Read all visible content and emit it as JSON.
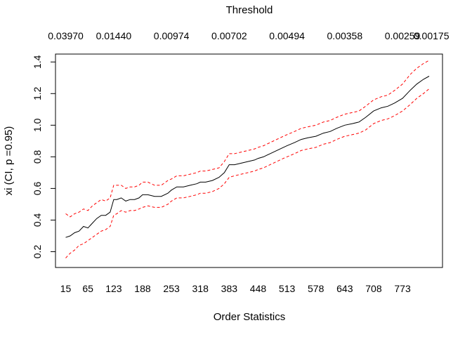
{
  "chart_data": {
    "type": "line",
    "title": "",
    "xlabel": "Order Statistics",
    "ylabel": "xi (CI, p =0.95)",
    "top_axis_label": "Threshold",
    "x_ticks": [
      15,
      65,
      123,
      188,
      253,
      318,
      383,
      448,
      513,
      578,
      643,
      708,
      773
    ],
    "x_tick_labels": [
      "15",
      "65",
      "123",
      "188",
      "253",
      "318",
      "383",
      "448",
      "513",
      "578",
      "643",
      "708",
      "773"
    ],
    "top_ticks": [
      15,
      123,
      253,
      383,
      513,
      643,
      773,
      838
    ],
    "top_tick_labels": [
      "0.03970",
      "0.01440",
      "0.00974",
      "0.00702",
      "0.00494",
      "0.00358",
      "0.00259",
      "0.00175"
    ],
    "y_ticks": [
      0.2,
      0.4,
      0.6,
      0.8,
      1.0,
      1.2,
      1.4
    ],
    "y_tick_labels": [
      "0.2",
      "0.4",
      "0.6",
      "0.8",
      "1.0",
      "1.2",
      "1.4"
    ],
    "xlim": [
      -8,
      863
    ],
    "ylim": [
      0.1,
      1.45
    ],
    "grid": false,
    "legend": "none",
    "series": [
      {
        "role": "estimate",
        "color": "#000000",
        "style": "solid",
        "x": [
          15,
          25,
          35,
          45,
          55,
          65,
          75,
          85,
          95,
          105,
          115,
          123,
          130,
          140,
          150,
          160,
          170,
          180,
          188,
          200,
          215,
          230,
          245,
          253,
          265,
          280,
          295,
          310,
          318,
          330,
          345,
          360,
          372,
          383,
          395,
          410,
          425,
          440,
          448,
          460,
          475,
          490,
          505,
          513,
          530,
          545,
          560,
          578,
          595,
          610,
          625,
          643,
          660,
          675,
          690,
          708,
          725,
          740,
          755,
          773,
          790,
          805,
          820,
          833
        ],
        "y": [
          0.29,
          0.3,
          0.32,
          0.33,
          0.36,
          0.35,
          0.38,
          0.41,
          0.43,
          0.43,
          0.45,
          0.53,
          0.53,
          0.54,
          0.52,
          0.53,
          0.53,
          0.54,
          0.56,
          0.56,
          0.55,
          0.55,
          0.57,
          0.59,
          0.61,
          0.61,
          0.62,
          0.63,
          0.64,
          0.64,
          0.65,
          0.67,
          0.7,
          0.75,
          0.75,
          0.76,
          0.77,
          0.78,
          0.79,
          0.8,
          0.82,
          0.84,
          0.86,
          0.87,
          0.89,
          0.91,
          0.92,
          0.93,
          0.95,
          0.96,
          0.98,
          1.0,
          1.01,
          1.02,
          1.05,
          1.09,
          1.11,
          1.12,
          1.14,
          1.17,
          1.22,
          1.26,
          1.29,
          1.31
        ]
      },
      {
        "role": "upper bound",
        "color": "#ff0000",
        "style": "dashed",
        "x": [
          15,
          25,
          35,
          45,
          55,
          65,
          75,
          85,
          95,
          105,
          115,
          123,
          130,
          140,
          150,
          160,
          170,
          180,
          188,
          200,
          215,
          230,
          245,
          253,
          265,
          280,
          295,
          310,
          318,
          330,
          345,
          360,
          372,
          383,
          395,
          410,
          425,
          440,
          448,
          460,
          475,
          490,
          505,
          513,
          530,
          545,
          560,
          578,
          595,
          610,
          625,
          643,
          660,
          675,
          690,
          708,
          725,
          740,
          755,
          773,
          790,
          805,
          820,
          833
        ],
        "y": [
          0.44,
          0.42,
          0.44,
          0.45,
          0.47,
          0.46,
          0.49,
          0.51,
          0.53,
          0.52,
          0.54,
          0.62,
          0.62,
          0.62,
          0.6,
          0.61,
          0.61,
          0.62,
          0.64,
          0.64,
          0.62,
          0.62,
          0.65,
          0.66,
          0.68,
          0.68,
          0.69,
          0.7,
          0.71,
          0.71,
          0.72,
          0.73,
          0.77,
          0.82,
          0.82,
          0.83,
          0.84,
          0.85,
          0.86,
          0.87,
          0.89,
          0.91,
          0.93,
          0.94,
          0.96,
          0.98,
          0.99,
          1.0,
          1.02,
          1.03,
          1.05,
          1.07,
          1.08,
          1.09,
          1.12,
          1.16,
          1.18,
          1.19,
          1.22,
          1.26,
          1.32,
          1.36,
          1.39,
          1.41
        ]
      },
      {
        "role": "lower bound",
        "color": "#ff0000",
        "style": "dashed",
        "x": [
          15,
          25,
          35,
          45,
          55,
          65,
          75,
          85,
          95,
          105,
          115,
          123,
          130,
          140,
          150,
          160,
          170,
          180,
          188,
          200,
          215,
          230,
          245,
          253,
          265,
          280,
          295,
          310,
          318,
          330,
          345,
          360,
          372,
          383,
          395,
          410,
          425,
          440,
          448,
          460,
          475,
          490,
          505,
          513,
          530,
          545,
          560,
          578,
          595,
          610,
          625,
          643,
          660,
          675,
          690,
          708,
          725,
          740,
          755,
          773,
          790,
          805,
          820,
          833
        ],
        "y": [
          0.16,
          0.19,
          0.21,
          0.24,
          0.25,
          0.27,
          0.29,
          0.31,
          0.33,
          0.34,
          0.36,
          0.43,
          0.44,
          0.46,
          0.45,
          0.46,
          0.46,
          0.47,
          0.48,
          0.49,
          0.48,
          0.48,
          0.5,
          0.52,
          0.54,
          0.54,
          0.55,
          0.56,
          0.57,
          0.57,
          0.58,
          0.6,
          0.63,
          0.67,
          0.68,
          0.69,
          0.7,
          0.71,
          0.72,
          0.73,
          0.75,
          0.77,
          0.79,
          0.8,
          0.82,
          0.84,
          0.85,
          0.86,
          0.88,
          0.89,
          0.91,
          0.93,
          0.94,
          0.95,
          0.97,
          1.01,
          1.03,
          1.04,
          1.06,
          1.09,
          1.13,
          1.17,
          1.2,
          1.23
        ]
      }
    ]
  }
}
